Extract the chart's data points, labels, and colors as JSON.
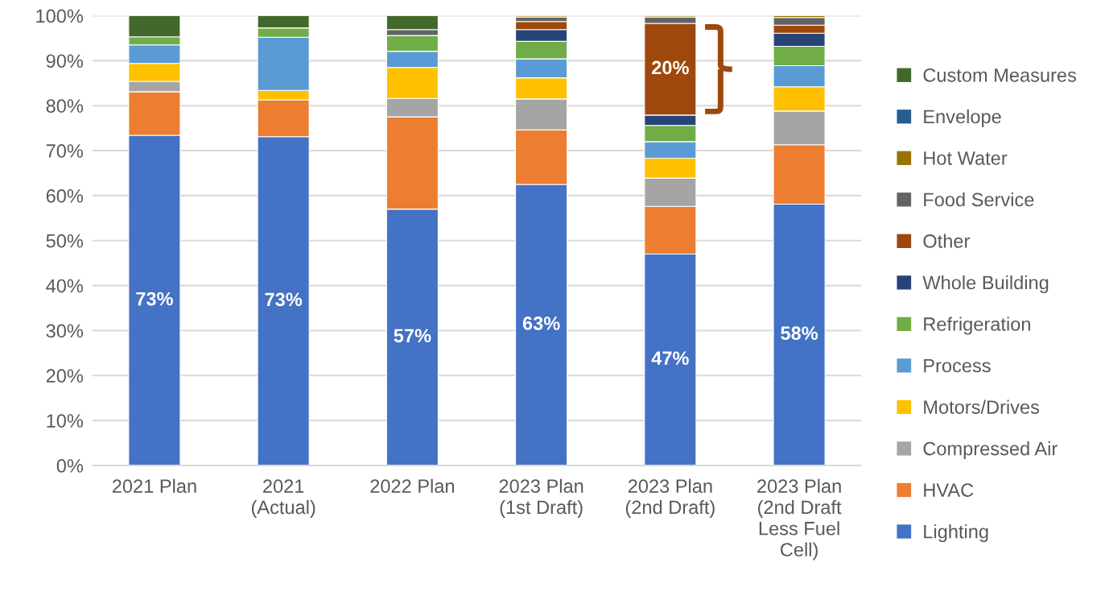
{
  "chart_data": {
    "type": "bar",
    "stacked": true,
    "categories": [
      "2021 Plan",
      "2021\n(Actual)",
      "2022 Plan",
      "2023 Plan\n(1st Draft)",
      "2023 Plan\n(2nd Draft)",
      "2023 Plan\n(2nd Draft\nLess Fuel\nCell)"
    ],
    "series": [
      {
        "name": "Lighting",
        "color": "#4472c4",
        "values": [
          73.4,
          73.1,
          57.0,
          62.5,
          47.0,
          58.1
        ],
        "value_labels": [
          "73%",
          "73%",
          "57%",
          "63%",
          "47%",
          "58%"
        ]
      },
      {
        "name": "HVAC",
        "color": "#ed7d31",
        "values": [
          9.7,
          8.2,
          20.5,
          12.1,
          10.6,
          13.2
        ]
      },
      {
        "name": "Compressed Air",
        "color": "#a5a5a5",
        "values": [
          2.3,
          null,
          4.1,
          6.9,
          6.3,
          7.5
        ]
      },
      {
        "name": "Motors/Drives",
        "color": "#ffc000",
        "values": [
          4.0,
          2.1,
          6.9,
          4.7,
          4.4,
          5.4
        ]
      },
      {
        "name": "Process",
        "color": "#5b9bd5",
        "values": [
          4.1,
          11.8,
          3.6,
          4.2,
          3.7,
          4.7
        ]
      },
      {
        "name": "Refrigeration",
        "color": "#70ad47",
        "values": [
          1.8,
          2.1,
          3.5,
          3.9,
          3.6,
          4.3
        ]
      },
      {
        "name": "Whole Building",
        "color": "#264478",
        "values": [
          null,
          null,
          null,
          2.6,
          2.3,
          2.9
        ]
      },
      {
        "name": "Other",
        "color": "#9e480e",
        "values": [
          null,
          null,
          null,
          1.8,
          20.4,
          1.8
        ],
        "value_labels": [
          null,
          null,
          null,
          null,
          "20%",
          null
        ]
      },
      {
        "name": "Food Service",
        "color": "#636363",
        "values": [
          null,
          null,
          1.3,
          1.0,
          1.4,
          1.7
        ]
      },
      {
        "name": "Hot Water",
        "color": "#997300",
        "values": [
          null,
          null,
          null,
          0.3,
          0.3,
          0.4
        ]
      },
      {
        "name": "Envelope",
        "color": "#255e91",
        "values": [
          null,
          null,
          null,
          null,
          null,
          null
        ]
      },
      {
        "name": "Custom Measures",
        "color": "#43682b",
        "values": [
          4.7,
          2.7,
          3.1,
          null,
          null,
          null
        ]
      }
    ],
    "ylim": [
      0,
      100
    ],
    "yticks": [
      {
        "value": 0,
        "label": "0%"
      },
      {
        "value": 10,
        "label": "10%"
      },
      {
        "value": 20,
        "label": "20%"
      },
      {
        "value": 30,
        "label": "30%"
      },
      {
        "value": 40,
        "label": "40%"
      },
      {
        "value": 50,
        "label": "50%"
      },
      {
        "value": 60,
        "label": "60%"
      },
      {
        "value": 70,
        "label": "70%"
      },
      {
        "value": 80,
        "label": "80%"
      },
      {
        "value": 90,
        "label": "90%"
      },
      {
        "value": 100,
        "label": "100%"
      }
    ],
    "grid": "y",
    "legend": "right"
  }
}
